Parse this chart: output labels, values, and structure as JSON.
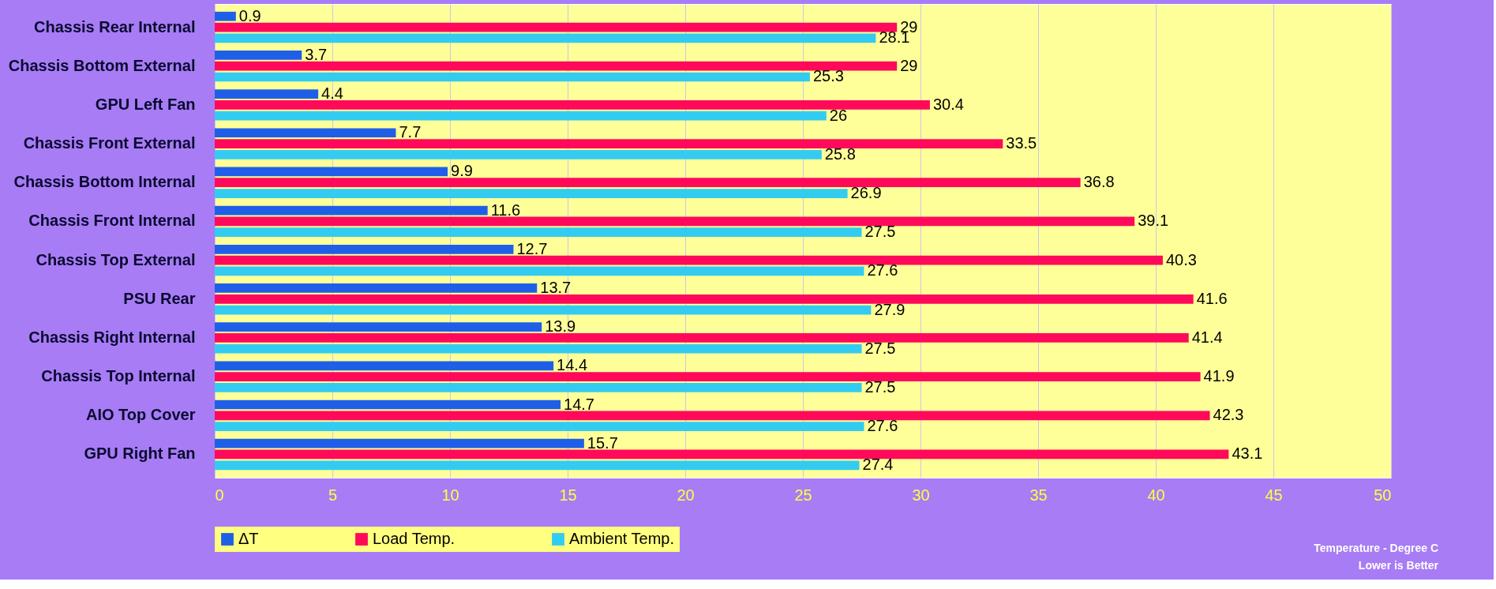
{
  "chart_data": {
    "type": "bar",
    "orientation": "horizontal",
    "categories": [
      "Chassis Rear Internal",
      "Chassis Bottom External",
      "GPU Left Fan",
      "Chassis Front External",
      "Chassis Bottom Internal",
      "Chassis Front Internal",
      "Chassis Top External",
      "PSU Rear",
      "Chassis Right Internal",
      "Chassis Top Internal",
      "AIO Top Cover",
      "GPU Right Fan"
    ],
    "series": [
      {
        "name": "ΔT",
        "color": "#1f5fe8",
        "values": [
          0.9,
          3.7,
          4.4,
          7.7,
          9.9,
          11.6,
          12.7,
          13.7,
          13.9,
          14.4,
          14.7,
          15.7
        ]
      },
      {
        "name": "Load Temp.",
        "color": "#ff0a5a",
        "values": [
          29,
          29,
          30.4,
          33.5,
          36.8,
          39.1,
          40.3,
          41.6,
          41.4,
          41.9,
          42.3,
          43.1
        ]
      },
      {
        "name": "Ambient Temp.",
        "color": "#33ccf0",
        "values": [
          28.1,
          25.3,
          26,
          25.8,
          26.9,
          27.5,
          27.6,
          27.9,
          27.5,
          27.5,
          27.6,
          27.4
        ]
      }
    ],
    "xlim": [
      0,
      50
    ],
    "xticks": [
      0,
      5,
      10,
      15,
      20,
      25,
      30,
      35,
      40,
      45,
      50
    ],
    "grid": "x",
    "legend": "bottom",
    "data_labels": true,
    "annotations": [
      "Temperature - Degree C",
      "Lower is Better"
    ]
  }
}
